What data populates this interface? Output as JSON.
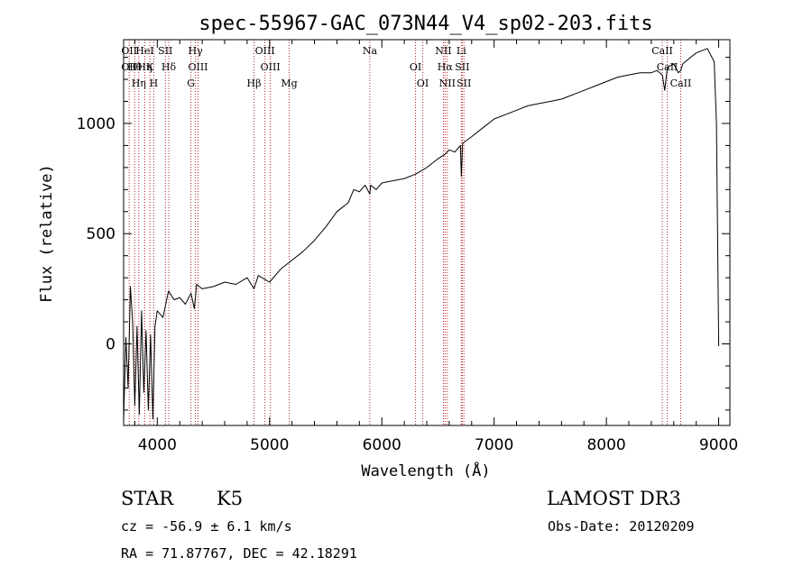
{
  "chart_data": {
    "type": "line",
    "title": "spec-55967-GAC_073N44_V4_sp02-203.fits",
    "xlabel": "Wavelength (Å)",
    "ylabel": "Flux (relative)",
    "xlim": [
      3700,
      9100
    ],
    "ylim": [
      -370,
      1380
    ],
    "xticks": [
      4000,
      5000,
      6000,
      7000,
      8000,
      9000
    ],
    "yticks": [
      0,
      500,
      1000
    ],
    "series": [
      {
        "name": "spectrum",
        "x": [
          3700,
          3720,
          3740,
          3760,
          3780,
          3800,
          3820,
          3840,
          3860,
          3880,
          3900,
          3920,
          3940,
          3960,
          3980,
          4000,
          4050,
          4100,
          4150,
          4200,
          4250,
          4300,
          4330,
          4350,
          4400,
          4500,
          4600,
          4700,
          4800,
          4861,
          4900,
          5000,
          5100,
          5200,
          5300,
          5400,
          5500,
          5600,
          5700,
          5750,
          5800,
          5850,
          5893,
          5900,
          5950,
          6000,
          6100,
          6200,
          6300,
          6400,
          6500,
          6563,
          6600,
          6650,
          6700,
          6708,
          6720,
          6800,
          6900,
          7000,
          7100,
          7200,
          7300,
          7400,
          7500,
          7600,
          7700,
          7800,
          7900,
          8000,
          8100,
          8200,
          8300,
          8400,
          8450,
          8498,
          8520,
          8542,
          8560,
          8600,
          8640,
          8662,
          8680,
          8750,
          8800,
          8850,
          8900,
          8930,
          8960,
          8980,
          9000
        ],
        "y": [
          -350,
          30,
          -200,
          260,
          100,
          -280,
          80,
          -320,
          150,
          -220,
          60,
          -300,
          40,
          -340,
          80,
          150,
          120,
          240,
          200,
          210,
          180,
          230,
          160,
          270,
          250,
          260,
          280,
          270,
          300,
          250,
          310,
          280,
          340,
          380,
          420,
          470,
          530,
          600,
          640,
          700,
          690,
          720,
          680,
          720,
          700,
          730,
          740,
          750,
          770,
          800,
          840,
          860,
          880,
          870,
          900,
          760,
          910,
          940,
          980,
          1020,
          1040,
          1060,
          1080,
          1090,
          1100,
          1110,
          1130,
          1150,
          1170,
          1190,
          1210,
          1220,
          1230,
          1230,
          1240,
          1220,
          1150,
          1250,
          1260,
          1270,
          1230,
          1240,
          1270,
          1300,
          1320,
          1330,
          1340,
          1310,
          1280,
          1000,
          -10
        ]
      }
    ],
    "line_markers": [
      {
        "wl": 3750,
        "labels": [
          "OII",
          "OII"
        ]
      },
      {
        "wl": 3798,
        "labels": [
          "Hθ"
        ]
      },
      {
        "wl": 3835,
        "labels": [
          "Hη"
        ]
      },
      {
        "wl": 3889,
        "labels": [
          "HeI",
          "Hη"
        ]
      },
      {
        "wl": 3934,
        "labels": [
          "K"
        ]
      },
      {
        "wl": 3969,
        "labels": [
          "H"
        ]
      },
      {
        "wl": 4072,
        "labels": [
          "SII"
        ]
      },
      {
        "wl": 4102,
        "labels": [
          "Hδ"
        ]
      },
      {
        "wl": 4300,
        "labels": [
          "G"
        ]
      },
      {
        "wl": 4340,
        "labels": [
          "Hγ"
        ]
      },
      {
        "wl": 4363,
        "labels": [
          "OIII"
        ]
      },
      {
        "wl": 4861,
        "labels": [
          "Hβ"
        ]
      },
      {
        "wl": 4959,
        "labels": [
          "OIII"
        ]
      },
      {
        "wl": 5007,
        "labels": [
          "OIII"
        ]
      },
      {
        "wl": 5175,
        "labels": [
          "Mg"
        ]
      },
      {
        "wl": 5893,
        "labels": [
          "Na"
        ]
      },
      {
        "wl": 6300,
        "labels": [
          "OI"
        ]
      },
      {
        "wl": 6364,
        "labels": [
          "OI"
        ]
      },
      {
        "wl": 6548,
        "labels": [
          "NII"
        ]
      },
      {
        "wl": 6563,
        "labels": [
          "Hα"
        ]
      },
      {
        "wl": 6583,
        "labels": [
          "NII"
        ]
      },
      {
        "wl": 6708,
        "labels": [
          "Li"
        ]
      },
      {
        "wl": 6716,
        "labels": [
          "SII"
        ]
      },
      {
        "wl": 6731,
        "labels": [
          "SII"
        ]
      },
      {
        "wl": 8498,
        "labels": [
          "CaII"
        ]
      },
      {
        "wl": 8542,
        "labels": [
          "CaII"
        ]
      },
      {
        "wl": 8662,
        "labels": [
          "CaII"
        ]
      }
    ]
  },
  "info": {
    "object_class": "STAR",
    "subclass": "K5",
    "survey": "LAMOST DR3",
    "cz": "cz = -56.9 ± 6.1 km/s",
    "obs_date": "Obs-Date: 20120209",
    "coords": "RA =  71.87767, DEC =  42.18291"
  },
  "colors": {
    "spectrum": "#000000",
    "line_marker": "#b22222",
    "text": "#000000"
  }
}
